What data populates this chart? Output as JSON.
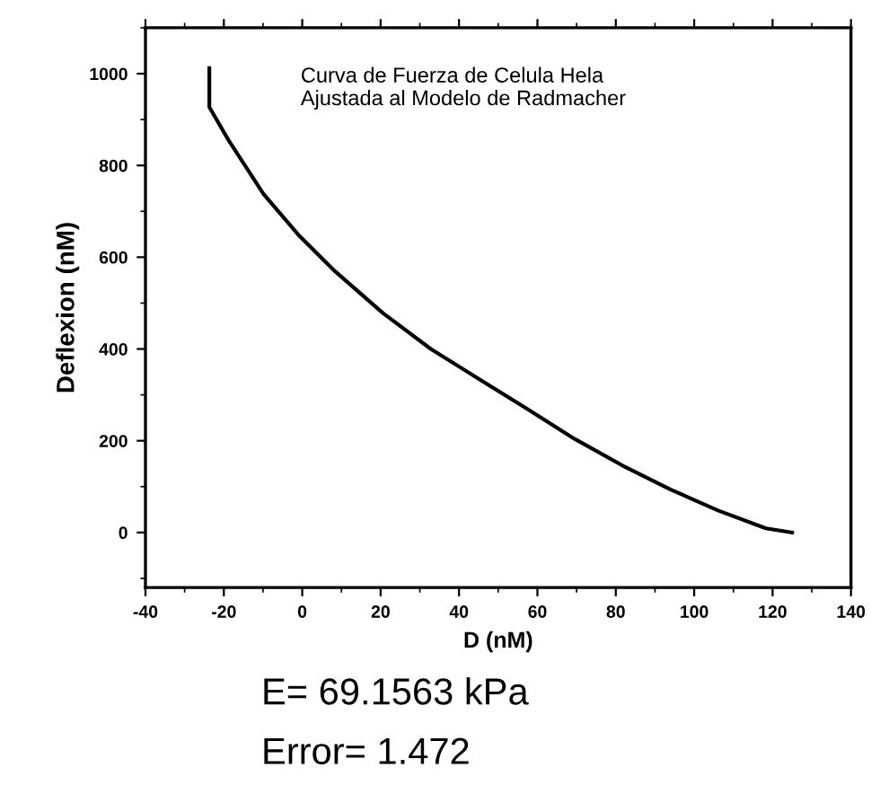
{
  "chart_data": {
    "type": "line",
    "xlabel": "D (nM)",
    "ylabel": "Deflexion (nM)",
    "annotations": [
      "Curva de Fuerza de Celula Hela\nAjustada al Modelo de Radmacher",
      "E= 69.1563 kPa",
      "Error= 1.472"
    ],
    "series": [
      {
        "color": "#000000",
        "x": [
          -23.7,
          -23.7,
          -18.8,
          -9.9,
          -0.8,
          8.4,
          20.6,
          32.8,
          45,
          57.3,
          69.5,
          81.7,
          93.9,
          106.1,
          118.3,
          125
        ],
        "values": [
          1012,
          927,
          855,
          738,
          647,
          569,
          478,
          400,
          335,
          270,
          204,
          146,
          94,
          48,
          9,
          0
        ]
      }
    ],
    "xlim": [
      -40,
      140
    ],
    "ylim": [
      -120,
      1100
    ],
    "xticks": [
      -40,
      -20,
      0,
      20,
      40,
      60,
      80,
      100,
      120,
      140
    ],
    "yticks": [
      0,
      200,
      400,
      600,
      800,
      1000
    ],
    "grid": false,
    "marker": "none",
    "line_style": "solid"
  }
}
